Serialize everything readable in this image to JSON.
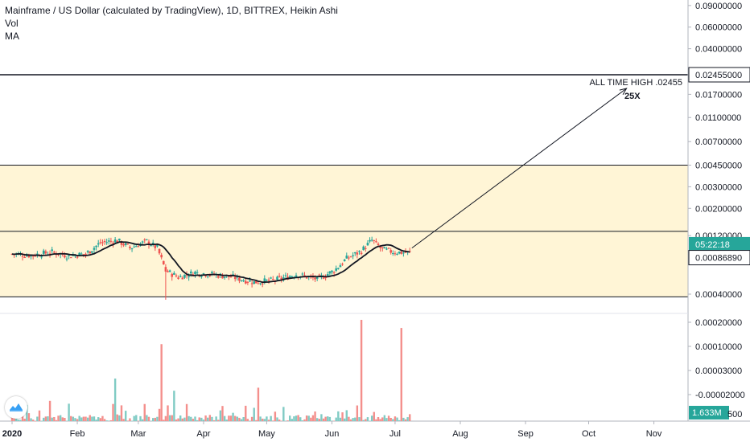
{
  "legend": {
    "title": "Mainframe / US Dollar (calculated by TradingView), 1D, BITTREX, Heikin Ashi",
    "vol": "Vol",
    "ma": "MA"
  },
  "colors": {
    "up": "#26a69a",
    "down": "#ef5350",
    "up_vol": "#80cbc4",
    "down_vol": "#f48f8c",
    "zone": "#fff5d6",
    "ma": "#131722",
    "time_badge": "#26a69a",
    "last_price_badge": "#131722"
  },
  "chart_data": {
    "type": "candlestick",
    "y_scale": "log",
    "price_axis_ticks": [
      "0.09000000",
      "0.06000000",
      "0.04000000",
      "0.02455000",
      "0.01700000",
      "0.01100000",
      "0.00700000",
      "0.00450000",
      "0.00300000",
      "0.00200000",
      "0.00120000",
      "0.00086890",
      "0.00040000"
    ],
    "volume_axis_ticks": [
      "0.00020000",
      "0.00010000",
      "0.00003000",
      "-0.00002000"
    ],
    "x_axis_ticks": [
      "2020",
      "Feb",
      "Mar",
      "Apr",
      "May",
      "Jun",
      "Jul",
      "Aug",
      "Sep",
      "Oct",
      "Nov"
    ],
    "horizontal_lines": [
      0.02455,
      0.0045,
      0.0013,
      0.00038
    ],
    "zones": [
      [
        0.0013,
        0.0045
      ],
      [
        0.00038,
        0.0013
      ]
    ],
    "annotation_text": "ALL TIME HIGH .02455",
    "annotation_multiplier": "25X",
    "arrow": {
      "from": {
        "date": "2020-07-09",
        "price": 0.00095
      },
      "to": {
        "date": "2020-10-19",
        "price": 0.019
      }
    },
    "last_price_label": "0.00086890",
    "countdown_label": "05:22:18",
    "volume_label": "1.633M",
    "volume_axis_partial": "500",
    "candles": [],
    "volume_spikes": [
      {
        "date": "2020-03-12",
        "rel": 0.76
      },
      {
        "date": "2020-06-15",
        "rel": 1.0
      },
      {
        "date": "2020-07-04",
        "rel": 0.92
      },
      {
        "date": "2020-02-19",
        "rel": 0.42
      },
      {
        "date": "2020-01-19",
        "rel": 0.2
      },
      {
        "date": "2020-03-18",
        "rel": 0.3
      },
      {
        "date": "2020-04-27",
        "rel": 0.33
      }
    ]
  }
}
